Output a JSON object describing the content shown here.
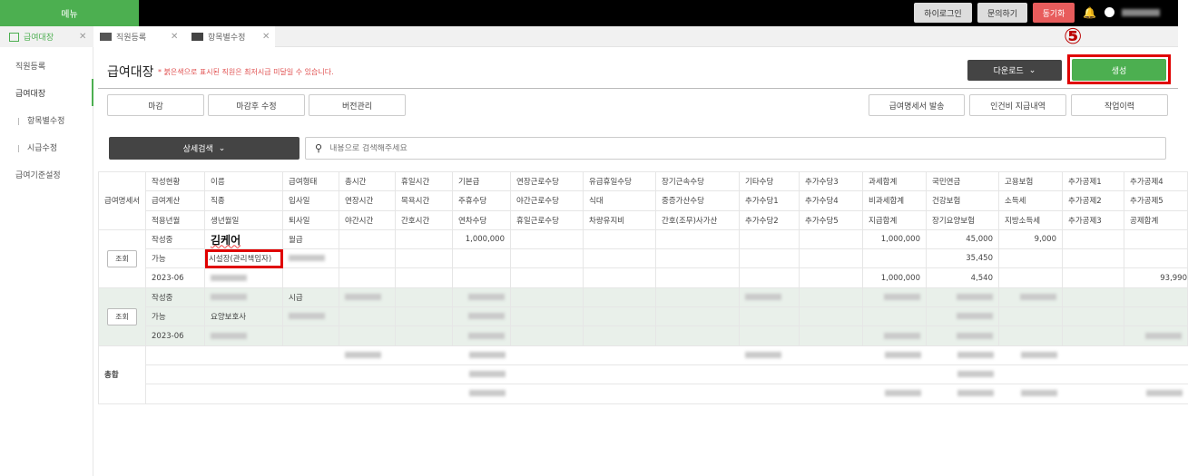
{
  "topbar": {
    "menu": "메뉴",
    "hi_login": "하이로그인",
    "inquiry": "문의하기",
    "sync": "동기화"
  },
  "tabs": [
    {
      "label": "급여대장",
      "icon": "table-icon"
    },
    {
      "label": "직원등록",
      "icon": "id-card-icon"
    },
    {
      "label": "항목별수정",
      "icon": "money-icon"
    }
  ],
  "sidebar": {
    "items": [
      {
        "label": "직원등록"
      },
      {
        "label": "급여대장"
      },
      {
        "label": "항목별수정"
      },
      {
        "label": "시급수정"
      },
      {
        "label": "급여기준설정"
      }
    ]
  },
  "header": {
    "title": "급여대장",
    "note": "* 붉은색으로 표시된 직원은 최저시급 미달일 수 있습니다.",
    "download": "다운로드",
    "create": "생성",
    "step": "⑤"
  },
  "toolbar": {
    "left": [
      "마감",
      "마감후 수정",
      "버전관리"
    ],
    "right": [
      "급여명세서 발송",
      "인건비 지급내역",
      "작업이력"
    ]
  },
  "search": {
    "detail": "상세검색",
    "placeholder": "내용으로 검색해주세요"
  },
  "colors": {
    "accent": "#4caf50",
    "sync": "#e85c5c",
    "highlight": "#e00000"
  },
  "table": {
    "first_header": "급여명세서",
    "headers": [
      [
        "작성현황",
        "이름",
        "급여형태",
        "총시간",
        "휴일시간",
        "기본급",
        "연장근로수당",
        "유급휴일수당",
        "장기근속수당",
        "기타수당",
        "추가수당3",
        "과세합계",
        "국민연금",
        "고용보험",
        "추가공제1",
        "추가공제4"
      ],
      [
        "급여계산",
        "직종",
        "입사일",
        "연장시간",
        "목욕시간",
        "주휴수당",
        "야간근로수당",
        "식대",
        "중증가산수당",
        "추가수당1",
        "추가수당4",
        "비과세합계",
        "건강보험",
        "소득세",
        "추가공제2",
        "추가공제5"
      ],
      [
        "적용년월",
        "생년월일",
        "퇴사일",
        "야간시간",
        "간호시간",
        "연차수당",
        "휴일근로수당",
        "차량유지비",
        "간호(조무)사가산",
        "추가수당2",
        "추가수당5",
        "지급합계",
        "장기요양보험",
        "지방소득세",
        "추가공제3",
        "공제합계"
      ]
    ],
    "view_label": "조회",
    "employees": [
      {
        "rows": [
          [
            "작성중",
            "김케어",
            "월급",
            "",
            "",
            "1,000,000",
            "",
            "",
            "",
            "",
            "",
            "1,000,000",
            "45,000",
            "9,000",
            "",
            ""
          ],
          [
            "가능",
            "시설장(관리책임자)",
            {
              "blurred": true
            },
            "",
            "",
            "",
            "",
            "",
            "",
            "",
            "",
            "",
            "35,450",
            "",
            "",
            ""
          ],
          [
            "2023-06",
            {
              "blurred": true
            },
            "",
            "",
            "",
            "",
            "",
            "",
            "",
            "",
            "",
            "1,000,000",
            "4,540",
            "",
            "",
            "93,990"
          ]
        ]
      },
      {
        "rows": [
          [
            "작성중",
            {
              "blurred": true
            },
            "시급",
            {
              "blurred": true
            },
            "",
            {
              "blurred": true
            },
            "",
            "",
            "",
            {
              "blurred": true
            },
            "",
            {
              "blurred": true
            },
            {
              "blurred": true
            },
            {
              "blurred": true
            },
            "",
            ""
          ],
          [
            "가능",
            "요양보호사",
            {
              "blurred": true
            },
            "",
            "",
            {
              "blurred": true
            },
            "",
            "",
            "",
            "",
            "",
            "",
            {
              "blurred": true
            },
            "",
            "",
            ""
          ],
          [
            "2023-06",
            {
              "blurred": true
            },
            "",
            "",
            "",
            {
              "blurred": true
            },
            "",
            "",
            "",
            "",
            "",
            {
              "blurred": true
            },
            {
              "blurred": true
            },
            "",
            "",
            {
              "blurred": true
            }
          ]
        ]
      }
    ],
    "total_label": "총합",
    "total_rows": [
      [
        "",
        "",
        "",
        {
          "blurred": true
        },
        "",
        {
          "blurred": true
        },
        "",
        "",
        "",
        {
          "blurred": true
        },
        "",
        {
          "blurred": true
        },
        {
          "blurred": true
        },
        {
          "blurred": true
        },
        "",
        ""
      ],
      [
        "",
        "",
        "",
        "",
        "",
        {
          "blurred": true
        },
        "",
        "",
        "",
        "",
        "",
        "",
        {
          "blurred": true
        },
        "",
        "",
        ""
      ],
      [
        "",
        "",
        "",
        "",
        "",
        {
          "blurred": true
        },
        "",
        "",
        "",
        "",
        "",
        {
          "blurred": true
        },
        {
          "blurred": true
        },
        {
          "blurred": true
        },
        "",
        {
          "blurred": true
        }
      ]
    ]
  }
}
